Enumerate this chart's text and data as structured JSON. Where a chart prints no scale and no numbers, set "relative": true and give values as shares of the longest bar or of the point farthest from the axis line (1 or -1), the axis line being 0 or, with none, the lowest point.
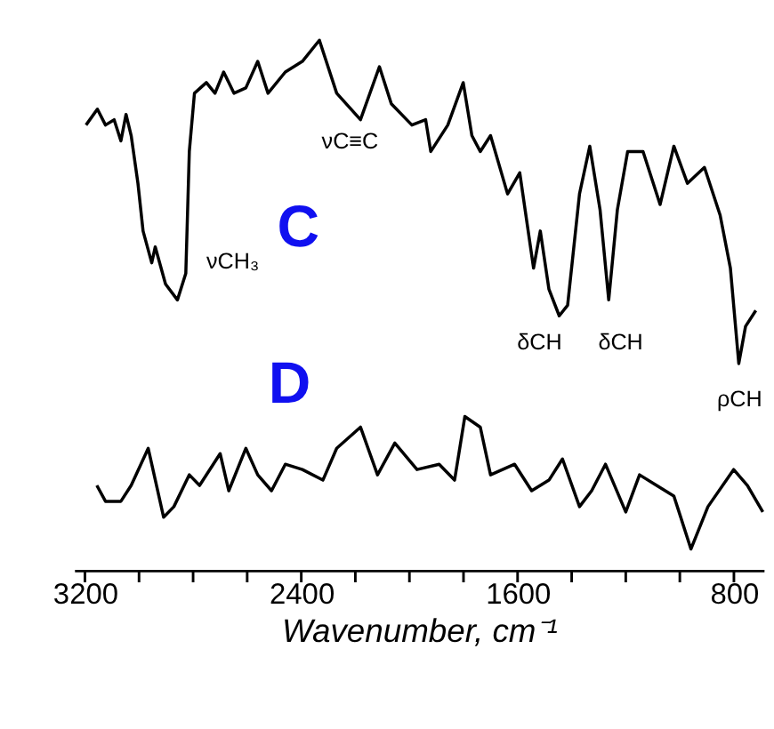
{
  "chart_data": {
    "type": "line",
    "relative": true,
    "xlabel": "Wavenumber, cm⁻¹",
    "xlim": [
      3240,
      690
    ],
    "xticks": [
      3200,
      {
        "value": 3000,
        "label": null
      },
      {
        "value": 2800,
        "label": null
      },
      {
        "value": 2600,
        "label": null
      },
      2400,
      {
        "value": 2200,
        "label": null
      },
      {
        "value": 2000,
        "label": null
      },
      {
        "value": 1800,
        "label": null
      },
      1600,
      {
        "value": 1400,
        "label": null
      },
      {
        "value": 1200,
        "label": null
      },
      {
        "value": 1000,
        "label": null
      },
      800
    ],
    "grid": false,
    "line_style": "solid",
    "marker": "none",
    "series": [
      {
        "name": "C",
        "color": "#000000",
        "x": [
          3196,
          3154,
          3124,
          3092,
          3067,
          3048,
          3029,
          3004,
          2985,
          2953,
          2940,
          2902,
          2858,
          2827,
          2814,
          2795,
          2751,
          2719,
          2687,
          2649,
          2605,
          2561,
          2523,
          2459,
          2396,
          2333,
          2269,
          2181,
          2111,
          2067,
          1991,
          1940,
          1921,
          1858,
          1801,
          1769,
          1738,
          1700,
          1637,
          1592,
          1541,
          1516,
          1484,
          1446,
          1415,
          1371,
          1333,
          1295,
          1263,
          1231,
          1193,
          1136,
          1073,
          1022,
          972,
          909,
          851,
          813,
          782,
          757,
          719
        ],
        "values": [
          0.84,
          0.87,
          0.84,
          0.85,
          0.81,
          0.86,
          0.82,
          0.73,
          0.64,
          0.58,
          0.61,
          0.54,
          0.51,
          0.56,
          0.79,
          0.9,
          0.92,
          0.9,
          0.94,
          0.9,
          0.91,
          0.96,
          0.9,
          0.94,
          0.96,
          1.0,
          0.9,
          0.85,
          0.95,
          0.88,
          0.84,
          0.85,
          0.79,
          0.84,
          0.92,
          0.82,
          0.79,
          0.82,
          0.71,
          0.75,
          0.57,
          0.64,
          0.53,
          0.48,
          0.5,
          0.71,
          0.8,
          0.68,
          0.51,
          0.68,
          0.79,
          0.79,
          0.69,
          0.8,
          0.73,
          0.76,
          0.67,
          0.57,
          0.39,
          0.46,
          0.49
        ]
      },
      {
        "name": "D",
        "color": "#000000",
        "x": [
          3156,
          3124,
          3067,
          3029,
          2966,
          2909,
          2871,
          2814,
          2776,
          2700,
          2668,
          2605,
          2561,
          2510,
          2459,
          2396,
          2320,
          2269,
          2181,
          2118,
          2054,
          1972,
          1890,
          1833,
          1795,
          1738,
          1700,
          1611,
          1548,
          1484,
          1434,
          1371,
          1326,
          1275,
          1200,
          1149,
          1086,
          1022,
          959,
          896,
          801,
          750,
          693
        ],
        "values": [
          0.16,
          0.13,
          0.13,
          0.16,
          0.23,
          0.1,
          0.12,
          0.18,
          0.16,
          0.22,
          0.15,
          0.23,
          0.18,
          0.15,
          0.2,
          0.19,
          0.17,
          0.23,
          0.27,
          0.18,
          0.24,
          0.19,
          0.2,
          0.17,
          0.29,
          0.27,
          0.18,
          0.2,
          0.15,
          0.17,
          0.21,
          0.12,
          0.15,
          0.2,
          0.11,
          0.18,
          0.16,
          0.14,
          0.04,
          0.12,
          0.19,
          0.16,
          0.11
        ]
      }
    ],
    "annotations": [
      "νCH₃",
      "νC≡C",
      "δCH",
      "δCH",
      "ρCH"
    ]
  }
}
